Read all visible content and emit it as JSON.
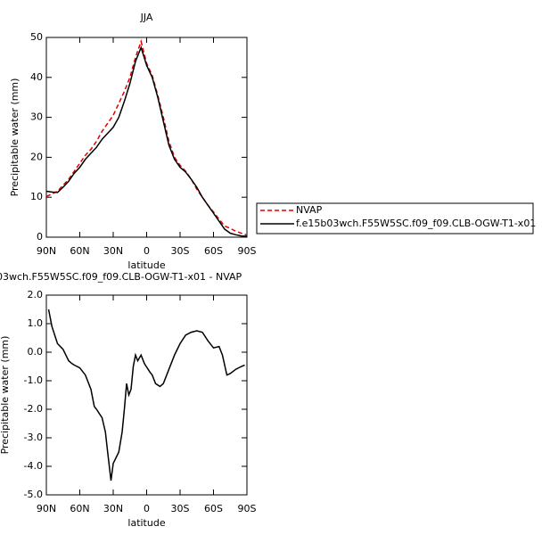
{
  "chart_data": [
    {
      "type": "line",
      "title": "JJA",
      "xlabel": "latitude",
      "ylabel": "Precipitable water (mm)",
      "x": [
        90,
        85,
        80,
        75,
        70,
        65,
        60,
        55,
        50,
        45,
        40,
        35,
        30,
        25,
        20,
        15,
        10,
        5,
        0,
        -5,
        -10,
        -15,
        -20,
        -25,
        -30,
        -35,
        -40,
        -45,
        -50,
        -55,
        -60,
        -65,
        -70,
        -75,
        -80,
        -85,
        -90
      ],
      "xlim": [
        90,
        -90
      ],
      "xticks": [
        {
          "value": 90,
          "label": "90N"
        },
        {
          "value": 60,
          "label": "60N"
        },
        {
          "value": 30,
          "label": "30N"
        },
        0,
        {
          "value": -30,
          "label": "30S"
        },
        {
          "value": -60,
          "label": "60S"
        },
        {
          "value": -90,
          "label": "90S"
        }
      ],
      "ylim": [
        0,
        50
      ],
      "yticks": [
        0,
        10,
        20,
        30,
        40,
        50
      ],
      "legend": "right",
      "series": [
        {
          "name": "NVAP",
          "color": "#e00000",
          "style": "dashed",
          "values": [
            10.2,
            10.8,
            11.5,
            13,
            14.5,
            16.5,
            18.5,
            20.5,
            22,
            24,
            26.5,
            28.5,
            30.5,
            33.5,
            36.5,
            40,
            45,
            49,
            43.5,
            40.5,
            35.5,
            30,
            24,
            20,
            18,
            16.5,
            14.5,
            12,
            10,
            8,
            6.3,
            4.5,
            2.8,
            2.2,
            1.5,
            1,
            0.5
          ]
        },
        {
          "name": "f.e15b03wch.F55W5SC.f09_f09.CLB-OGW-T1-x01",
          "color": "#000000",
          "style": "solid",
          "values": [
            11.5,
            11.3,
            11.2,
            12.5,
            14,
            16,
            17.5,
            19.5,
            21,
            22.5,
            24.5,
            26,
            27.5,
            30,
            34,
            38.5,
            44,
            47.5,
            43,
            40,
            35,
            29,
            23,
            19.5,
            17.5,
            16.3,
            14.5,
            12.5,
            10,
            8,
            6,
            4,
            2,
            1,
            0.6,
            0.3,
            0.2
          ]
        }
      ]
    },
    {
      "type": "line",
      "title": "03wch.F55W5SC.f09_f09.CLB-OGW-T1-x01 - NVAP",
      "xlabel": "latitude",
      "ylabel": "Precipitable water (mm)",
      "x": [
        88,
        85,
        80,
        75,
        70,
        67,
        65,
        60,
        55,
        50,
        47,
        45,
        40,
        37,
        35,
        32,
        30,
        25,
        22,
        20,
        18,
        16,
        14,
        12,
        10,
        8,
        5,
        2,
        -3,
        -5,
        -8,
        -12,
        -15,
        -20,
        -25,
        -30,
        -35,
        -40,
        -45,
        -50,
        -55,
        -60,
        -65,
        -68,
        -72,
        -75,
        -80,
        -85,
        -88
      ],
      "xlim": [
        90,
        -90
      ],
      "xticks": [
        {
          "value": 90,
          "label": "90N"
        },
        {
          "value": 60,
          "label": "60N"
        },
        {
          "value": 30,
          "label": "30N"
        },
        0,
        {
          "value": -30,
          "label": "30S"
        },
        {
          "value": -60,
          "label": "60S"
        },
        {
          "value": -90,
          "label": "90S"
        }
      ],
      "ylim": [
        -5,
        2
      ],
      "yticks": [
        {
          "value": -5,
          "label": "-5.0"
        },
        {
          "value": -4,
          "label": "-4.0"
        },
        {
          "value": -3,
          "label": "-3.0"
        },
        {
          "value": -2,
          "label": "-2.0"
        },
        {
          "value": -1,
          "label": "-1.0"
        },
        {
          "value": 0,
          "label": "0.0"
        },
        {
          "value": 1,
          "label": "1.0"
        },
        {
          "value": 2,
          "label": "2.0"
        }
      ],
      "series": [
        {
          "color": "#000000",
          "style": "solid",
          "values": [
            1.5,
            0.9,
            0.3,
            0.1,
            -0.3,
            -0.4,
            -0.45,
            -0.55,
            -0.8,
            -1.3,
            -1.9,
            -2.0,
            -2.3,
            -2.8,
            -3.5,
            -4.5,
            -3.9,
            -3.5,
            -2.8,
            -2.0,
            -1.1,
            -1.5,
            -1.3,
            -0.5,
            -0.1,
            -0.3,
            -0.1,
            -0.4,
            -0.7,
            -0.8,
            -1.1,
            -1.2,
            -1.1,
            -0.6,
            -0.1,
            0.3,
            0.6,
            0.7,
            0.75,
            0.7,
            0.4,
            0.15,
            0.2,
            -0.1,
            -0.8,
            -0.75,
            -0.6,
            -0.5,
            -0.45
          ]
        }
      ]
    }
  ]
}
